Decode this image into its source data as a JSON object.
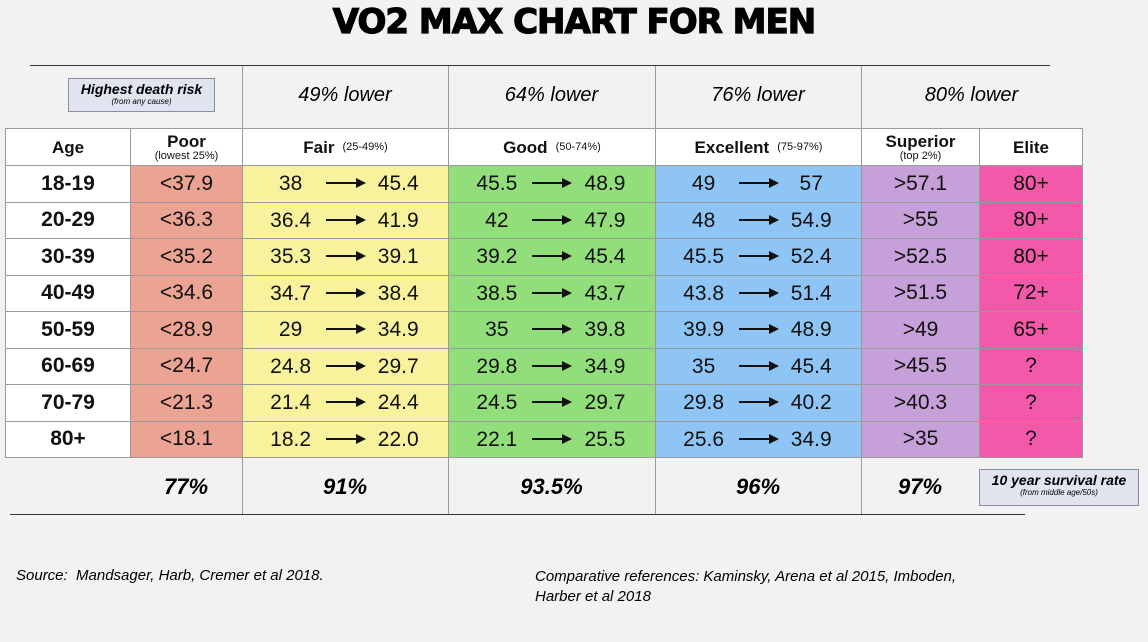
{
  "title": "VO2 MAX CHART FOR MEN",
  "risk_row": {
    "highest": {
      "label": "Highest death risk",
      "note": "(from any cause)"
    },
    "reductions": [
      "49% lower",
      "64% lower",
      "76% lower",
      "80% lower"
    ]
  },
  "columns": [
    {
      "name": "Age"
    },
    {
      "name": "Poor",
      "note": "(lowest 25%)"
    },
    {
      "name": "Fair",
      "note": "(25-49%)"
    },
    {
      "name": "Good",
      "note": "(50-74%)"
    },
    {
      "name": "Excellent",
      "note": "(75-97%)"
    },
    {
      "name": "Superior",
      "note": "(top 2%)"
    },
    {
      "name": "Elite"
    }
  ],
  "rows": [
    {
      "age": "18-19",
      "poor": "<37.9",
      "fair": [
        "38",
        "45.4"
      ],
      "good": [
        "45.5",
        "48.9"
      ],
      "excellent": [
        "49",
        "57"
      ],
      "superior": ">57.1",
      "elite": "80+"
    },
    {
      "age": "20-29",
      "poor": "<36.3",
      "fair": [
        "36.4",
        "41.9"
      ],
      "good": [
        "42",
        "47.9"
      ],
      "excellent": [
        "48",
        "54.9"
      ],
      "superior": ">55",
      "elite": "80+"
    },
    {
      "age": "30-39",
      "poor": "<35.2",
      "fair": [
        "35.3",
        "39.1"
      ],
      "good": [
        "39.2",
        "45.4"
      ],
      "excellent": [
        "45.5",
        "52.4"
      ],
      "superior": ">52.5",
      "elite": "80+"
    },
    {
      "age": "40-49",
      "poor": "<34.6",
      "fair": [
        "34.7",
        "38.4"
      ],
      "good": [
        "38.5",
        "43.7"
      ],
      "excellent": [
        "43.8",
        "51.4"
      ],
      "superior": ">51.5",
      "elite": "72+"
    },
    {
      "age": "50-59",
      "poor": "<28.9",
      "fair": [
        "29",
        "34.9"
      ],
      "good": [
        "35",
        "39.8"
      ],
      "excellent": [
        "39.9",
        "48.9"
      ],
      "superior": ">49",
      "elite": "65+"
    },
    {
      "age": "60-69",
      "poor": "<24.7",
      "fair": [
        "24.8",
        "29.7"
      ],
      "good": [
        "29.8",
        "34.9"
      ],
      "excellent": [
        "35",
        "45.4"
      ],
      "superior": ">45.5",
      "elite": "?"
    },
    {
      "age": "70-79",
      "poor": "<21.3",
      "fair": [
        "21.4",
        "24.4"
      ],
      "good": [
        "24.5",
        "29.7"
      ],
      "excellent": [
        "29.8",
        "40.2"
      ],
      "superior": ">40.3",
      "elite": "?"
    },
    {
      "age": "80+",
      "poor": "<18.1",
      "fair": [
        "18.2",
        "22.0"
      ],
      "good": [
        "22.1",
        "25.5"
      ],
      "excellent": [
        "25.6",
        "34.9"
      ],
      "superior": ">35",
      "elite": "?"
    }
  ],
  "survival": {
    "values": [
      "77%",
      "91%",
      "93.5%",
      "96%",
      "97%"
    ],
    "label": "10 year survival rate",
    "note": "(from middle age/50s)"
  },
  "sources": {
    "source": "Source:  Mandsager, Harb, Cremer et al 2018.",
    "comparative": "Comparative references:  Kaminsky, Arena et al 2015, Imboden, Harber et al 2018"
  }
}
